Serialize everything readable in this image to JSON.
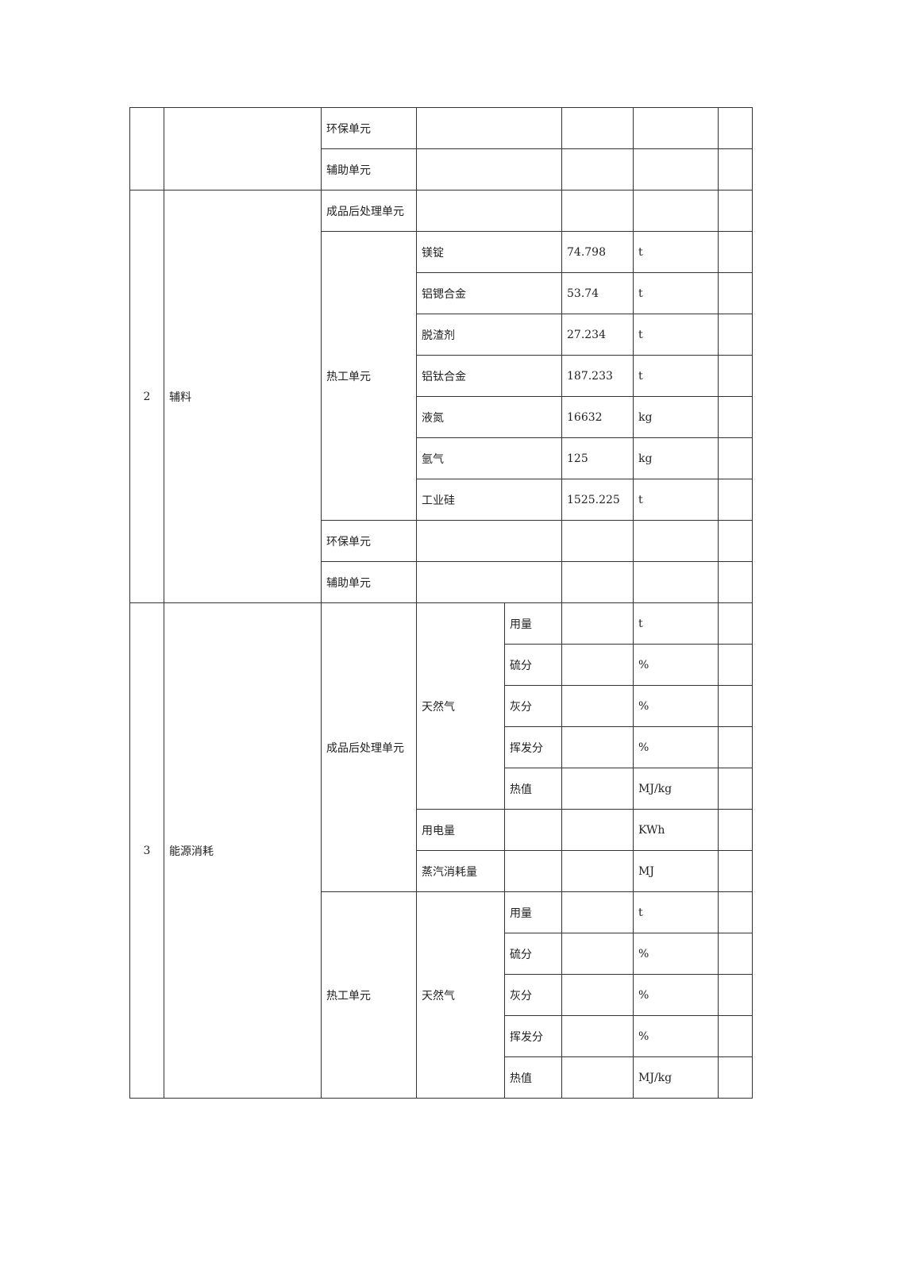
{
  "section1": {
    "unit_rows": [
      "环保单元",
      "辅助单元"
    ]
  },
  "section2": {
    "no": "2",
    "name": "辅料",
    "post_unit": "成品后处理单元",
    "thermal_unit": "热工单元",
    "materials": [
      {
        "name": "镁锭",
        "value": "74.798",
        "unit": "t"
      },
      {
        "name": "铝锶合金",
        "value": "53.74",
        "unit": "t"
      },
      {
        "name": "脱渣剂",
        "value": "27.234",
        "unit": "t"
      },
      {
        "name": "铝钛合金",
        "value": "187.233",
        "unit": "t"
      },
      {
        "name": "液氮",
        "value": "16632",
        "unit": "kg"
      },
      {
        "name": "氩气",
        "value": "125",
        "unit": "kg"
      },
      {
        "name": "工业硅",
        "value": "1525.225",
        "unit": "t"
      }
    ],
    "env_unit": "环保单元",
    "aux_unit": "辅助单元"
  },
  "section3": {
    "no": "3",
    "name": "能源消耗",
    "post": {
      "unit": "成品后处理单元",
      "gas": "天然气",
      "params": [
        {
          "name": "用量",
          "unit": "t"
        },
        {
          "name": "硫分",
          "unit": "%"
        },
        {
          "name": "灰分",
          "unit": "%"
        },
        {
          "name": "挥发分",
          "unit": "%"
        },
        {
          "name": "热值",
          "unit": "MJ/kg"
        }
      ],
      "electricity": {
        "name": "用电量",
        "unit": "KWh"
      },
      "steam": {
        "name": "蒸汽消耗量",
        "unit": "MJ"
      }
    },
    "thermal": {
      "unit": "热工单元",
      "gas": "天然气",
      "params": [
        {
          "name": "用量",
          "unit": "t"
        },
        {
          "name": "硫分",
          "unit": "%"
        },
        {
          "name": "灰分",
          "unit": "%"
        },
        {
          "name": "挥发分",
          "unit": "%"
        },
        {
          "name": "热值",
          "unit": "MJ/kg"
        }
      ]
    }
  }
}
